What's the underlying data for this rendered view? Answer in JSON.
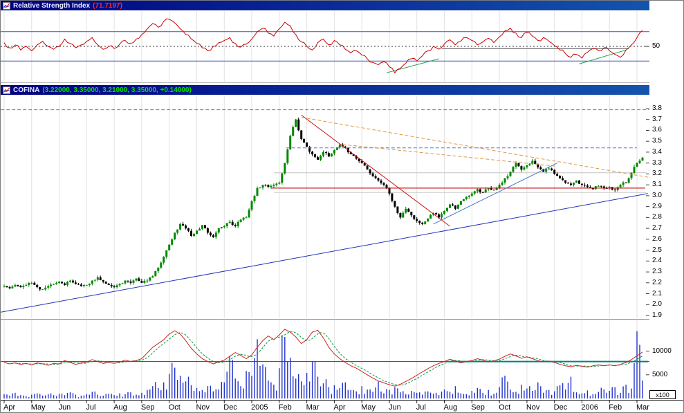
{
  "chrome": {
    "close_glyph": "×"
  },
  "rsi_panel": {
    "title": "Relative Strength Index",
    "value_text": "(71.7197)",
    "axis_label": "50"
  },
  "price_panel": {
    "title": "COFINA",
    "quote_text": "(3.22000, 3.35000, 3.21000, 3.35000, +0.14000)"
  },
  "volume_panel": {
    "unit_label": "x100",
    "axis_labels": [
      "10000",
      "5000"
    ]
  },
  "x_axis": {
    "months": [
      "Apr",
      "May",
      "Jun",
      "Jul",
      "Aug",
      "Sep",
      "Oct",
      "Nov",
      "Dec",
      "2005",
      "Feb",
      "Mar",
      "Apr",
      "May",
      "Jun",
      "Jul",
      "Aug",
      "Sep",
      "Oct",
      "Nov",
      "Dec",
      "2006",
      "Feb",
      "Mar"
    ]
  },
  "chart_data": [
    {
      "id": "rsi",
      "type": "line",
      "title": "Relative Strength Index",
      "current_value": 71.7197,
      "ylim": [
        0,
        100
      ],
      "levels": {
        "upper": 70,
        "mid": 50,
        "lower": 30
      },
      "line_color": "#cc0000",
      "values": [
        55,
        48,
        52,
        45,
        50,
        44,
        52,
        57,
        50,
        46,
        50,
        60,
        54,
        48,
        52,
        57,
        62,
        52,
        46,
        50,
        47,
        53,
        58,
        54,
        60,
        66,
        74,
        81,
        76,
        84,
        87,
        82,
        74,
        66,
        60,
        54,
        48,
        44,
        50,
        55,
        58,
        62,
        54,
        49,
        53,
        60,
        70,
        75,
        68,
        64,
        74,
        83,
        78,
        66,
        56,
        50,
        45,
        55,
        60,
        52,
        58,
        52,
        46,
        41,
        44,
        38,
        33,
        28,
        25,
        29,
        22,
        14,
        20,
        27,
        33,
        30,
        37,
        44,
        50,
        46,
        53,
        59,
        52,
        57,
        62,
        58,
        52,
        56,
        61,
        55,
        63,
        71,
        75,
        68,
        62,
        69,
        64,
        58,
        62,
        57,
        51,
        45,
        40,
        35,
        39,
        34,
        42,
        47,
        44,
        48,
        44,
        39,
        35,
        45,
        52,
        62,
        71.72
      ],
      "trendlines": [
        {
          "m1": 13.9,
          "v1": 14,
          "m2": 15.8,
          "v2": 33,
          "color": "#22a050"
        },
        {
          "m1": 20.9,
          "v1": 26,
          "m2": 22.6,
          "v2": 45,
          "color": "#22a050"
        },
        {
          "m1": 15.9,
          "v1": 47,
          "m2": 22.7,
          "v2": 47,
          "color": "#555555"
        }
      ]
    },
    {
      "id": "price",
      "type": "candlestick",
      "symbol": "COFINA",
      "quote": {
        "open": 3.22,
        "high": 3.35,
        "low": 3.21,
        "close": 3.35,
        "change": 0.14
      },
      "ylim": [
        1.9,
        3.8
      ],
      "y_ticks": [
        3.8,
        3.7,
        3.6,
        3.5,
        3.4,
        3.3,
        3.2,
        3.1,
        3.0,
        2.9,
        2.8,
        2.7,
        2.6,
        2.5,
        2.4,
        2.3,
        2.2,
        2.1,
        2.0,
        1.9
      ],
      "up_color": "#008800",
      "down_color": "#000000",
      "close_values": [
        2.17,
        2.15,
        2.18,
        2.16,
        2.18,
        2.2,
        2.16,
        2.14,
        2.17,
        2.19,
        2.21,
        2.18,
        2.22,
        2.19,
        2.17,
        2.18,
        2.22,
        2.25,
        2.21,
        2.18,
        2.16,
        2.19,
        2.22,
        2.2,
        2.24,
        2.2,
        2.22,
        2.26,
        2.34,
        2.44,
        2.55,
        2.66,
        2.74,
        2.7,
        2.63,
        2.68,
        2.73,
        2.66,
        2.62,
        2.7,
        2.72,
        2.76,
        2.72,
        2.78,
        2.8,
        2.95,
        3.07,
        3.1,
        3.08,
        3.1,
        3.12,
        3.3,
        3.55,
        3.7,
        3.52,
        3.45,
        3.38,
        3.33,
        3.4,
        3.36,
        3.42,
        3.47,
        3.44,
        3.38,
        3.34,
        3.3,
        3.24,
        3.18,
        3.14,
        3.1,
        3.02,
        2.9,
        2.8,
        2.88,
        2.82,
        2.77,
        2.74,
        2.79,
        2.84,
        2.8,
        2.86,
        2.92,
        2.88,
        2.95,
        2.99,
        3.02,
        3.06,
        3.03,
        3.07,
        3.05,
        3.1,
        3.16,
        3.22,
        3.3,
        3.24,
        3.28,
        3.32,
        3.26,
        3.22,
        3.25,
        3.2,
        3.16,
        3.12,
        3.1,
        3.14,
        3.1,
        3.08,
        3.06,
        3.09,
        3.07,
        3.08,
        3.05,
        3.1,
        3.12,
        3.21,
        3.3,
        3.35
      ],
      "trendlines": [
        {
          "m1": -0.12,
          "p1": 1.93,
          "m2": 23.4,
          "p2": 3.02,
          "color": "#2233bb",
          "style": "solid"
        },
        {
          "m1": 10.8,
          "p1": 3.74,
          "m2": 16.2,
          "p2": 2.72,
          "color": "#cc1111",
          "style": "solid"
        },
        {
          "m1": 15.6,
          "p1": 2.74,
          "m2": 20.1,
          "p2": 3.3,
          "color": "#4477cc",
          "style": "solid"
        },
        {
          "m1": 10.8,
          "p1": 3.72,
          "m2": 23.4,
          "p2": 3.17,
          "color": "#e09540",
          "style": "dashed"
        },
        {
          "m1": 12.3,
          "p1": 3.47,
          "m2": 20.1,
          "p2": 3.27,
          "color": "#e09540",
          "style": "dashed"
        }
      ],
      "hlines": [
        {
          "p": 3.79,
          "m1": -0.12,
          "m2": 23.45,
          "color": "#5577dd",
          "style": "dashed"
        },
        {
          "p": 3.44,
          "m1": 10.25,
          "m2": 23.0,
          "color": "#5577dd",
          "style": "dashed"
        },
        {
          "p": 3.07,
          "m1": 9.7,
          "m2": 23.3,
          "color": "#cc1111",
          "style": "solid"
        },
        {
          "p": 3.21,
          "m1": 9.8,
          "m2": 23.35,
          "color": "#c4c4c4",
          "style": "solid"
        },
        {
          "p": 3.03,
          "m1": 9.8,
          "m2": 23.35,
          "color": "#cccccc",
          "style": "solid"
        }
      ]
    },
    {
      "id": "volume",
      "type": "bar",
      "unit": "x100",
      "ylim": [
        0,
        16500
      ],
      "y_ticks": [
        10000,
        5000
      ],
      "bar_color": "#2233cc",
      "values": [
        900,
        600,
        1200,
        700,
        500,
        800,
        1100,
        600,
        900,
        700,
        1000,
        700,
        1300,
        800,
        600,
        900,
        1400,
        800,
        600,
        1000,
        700,
        1100,
        900,
        1300,
        800,
        1200,
        1800,
        2600,
        2200,
        3400,
        5200,
        6500,
        4800,
        3600,
        2800,
        2200,
        1800,
        2600,
        1500,
        1900,
        3400,
        9000,
        4200,
        2600,
        5800,
        4800,
        12500,
        7200,
        3800,
        2900,
        6400,
        13000,
        8600,
        4200,
        3600,
        5400,
        7800,
        4600,
        3200,
        2400,
        2800,
        2200,
        3400,
        1800,
        1500,
        2600,
        1900,
        1400,
        3600,
        1100,
        1800,
        2400,
        1300,
        900,
        1600,
        1200,
        800,
        1500,
        1000,
        700,
        1900,
        1400,
        2600,
        1100,
        900,
        1600,
        2200,
        1200,
        1800,
        1000,
        2400,
        4800,
        1900,
        1400,
        2900,
        2100,
        1600,
        3400,
        1200,
        1800,
        1500,
        2800,
        1900,
        4600,
        1300,
        1100,
        1700,
        900,
        1400,
        1900,
        1600,
        2400,
        1200,
        2900,
        2100,
        14200,
        3800
      ],
      "overlay_line": {
        "color": "#cc2222",
        "values": [
          7600,
          7300,
          7500,
          7200,
          7400,
          7100,
          7500,
          7300,
          7000,
          7400,
          7300,
          8000,
          7600,
          7200,
          7500,
          7700,
          8200,
          7800,
          7400,
          7600,
          7400,
          7700,
          8100,
          7800,
          8000,
          8400,
          9600,
          10800,
          11600,
          12400,
          13600,
          14300,
          13600,
          12200,
          10600,
          9400,
          8400,
          7800,
          7300,
          7700,
          8100,
          8900,
          9700,
          9100,
          8400,
          9200,
          10800,
          12200,
          13200,
          12400,
          13400,
          14600,
          14000,
          13000,
          11600,
          12400,
          14000,
          14400,
          12800,
          10800,
          9400,
          8400,
          7600,
          6900,
          6400,
          5700,
          5000,
          4300,
          3700,
          3300,
          2900,
          2600,
          3000,
          3600,
          4200,
          4900,
          5600,
          6300,
          6900,
          7400,
          7800,
          8300,
          7900,
          7500,
          7800,
          8000,
          8400,
          8100,
          7700,
          8000,
          8300,
          8900,
          9400,
          9000,
          8500,
          8800,
          8400,
          8000,
          7700,
          7900,
          7600,
          7200,
          6900,
          6700,
          7000,
          6800,
          6600,
          6900,
          7100,
          6900,
          7100,
          6900,
          7200,
          7600,
          8200,
          9000,
          9800
        ]
      },
      "hlines": [
        {
          "v": 7800,
          "m1": -0.12,
          "m2": 23.45,
          "color": "#2233cc",
          "width": 1
        },
        {
          "v": 7800,
          "m1": 16.1,
          "m2": 23.4,
          "color": "#008080",
          "width": 2
        }
      ]
    }
  ]
}
